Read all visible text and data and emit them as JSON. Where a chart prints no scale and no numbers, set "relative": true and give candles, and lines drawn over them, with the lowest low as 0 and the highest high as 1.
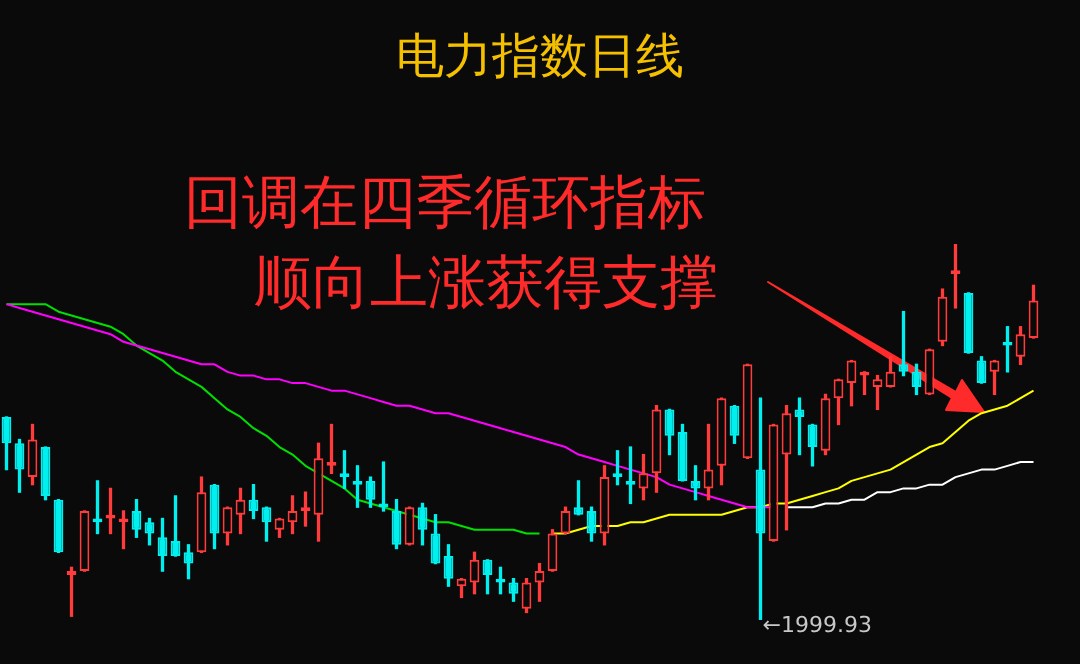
{
  "chart_data": {
    "type": "candlestick",
    "relative": true,
    "title": "电力指数日线",
    "legend": false,
    "annotations": [
      "回调在四季循环指标",
      "顺向上涨获得支撑",
      "←1999.93"
    ],
    "categories": [
      null,
      null,
      null,
      null,
      null,
      null,
      null,
      null,
      null,
      null,
      null,
      null,
      null,
      null,
      null,
      null,
      null,
      null,
      null,
      null,
      null,
      null,
      null,
      null,
      null,
      null,
      null,
      null,
      null,
      null,
      null,
      null,
      null,
      null,
      null,
      null,
      null,
      null,
      null,
      null,
      null,
      null,
      null,
      null,
      null,
      null,
      null,
      null,
      null,
      null,
      null,
      null,
      null,
      null,
      null,
      null,
      null,
      null,
      null,
      null,
      null,
      null,
      null,
      null,
      null,
      null,
      null,
      null,
      null,
      null,
      null,
      null,
      null,
      null,
      null,
      null,
      null,
      null,
      null,
      null
    ],
    "ohlc": [
      [
        0.54,
        0.54,
        0.4,
        0.47
      ],
      [
        0.47,
        0.48,
        0.34,
        0.4
      ],
      [
        0.38,
        0.52,
        0.36,
        0.48
      ],
      [
        0.46,
        0.46,
        0.32,
        0.33
      ],
      [
        0.32,
        0.32,
        0.18,
        0.18
      ],
      [
        0.12,
        0.14,
        0.01,
        0.13
      ],
      [
        0.13,
        0.29,
        0.13,
        0.29
      ],
      [
        0.27,
        0.37,
        0.23,
        0.26
      ],
      [
        0.27,
        0.35,
        0.23,
        0.28
      ],
      [
        0.26,
        0.29,
        0.19,
        0.27
      ],
      [
        0.29,
        0.32,
        0.22,
        0.24
      ],
      [
        0.26,
        0.27,
        0.2,
        0.23
      ],
      [
        0.22,
        0.27,
        0.13,
        0.17
      ],
      [
        0.21,
        0.33,
        0.17,
        0.17
      ],
      [
        0.18,
        0.2,
        0.11,
        0.15
      ],
      [
        0.18,
        0.38,
        0.18,
        0.34
      ],
      [
        0.36,
        0.36,
        0.19,
        0.23
      ],
      [
        0.23,
        0.3,
        0.2,
        0.3
      ],
      [
        0.28,
        0.35,
        0.23,
        0.32
      ],
      [
        0.32,
        0.36,
        0.27,
        0.29
      ],
      [
        0.3,
        0.3,
        0.21,
        0.26
      ],
      [
        0.24,
        0.27,
        0.22,
        0.27
      ],
      [
        0.26,
        0.33,
        0.23,
        0.29
      ],
      [
        0.29,
        0.34,
        0.25,
        0.3
      ],
      [
        0.28,
        0.47,
        0.21,
        0.43
      ],
      [
        0.41,
        0.52,
        0.39,
        0.42
      ],
      [
        0.39,
        0.45,
        0.35,
        0.38
      ],
      [
        0.37,
        0.41,
        0.3,
        0.36
      ],
      [
        0.37,
        0.38,
        0.3,
        0.32
      ],
      [
        0.31,
        0.42,
        0.29,
        0.3
      ],
      [
        0.29,
        0.32,
        0.19,
        0.2
      ],
      [
        0.2,
        0.3,
        0.2,
        0.3
      ],
      [
        0.3,
        0.31,
        0.2,
        0.24
      ],
      [
        0.23,
        0.28,
        0.15,
        0.15
      ],
      [
        0.17,
        0.2,
        0.09,
        0.11
      ],
      [
        0.09,
        0.11,
        0.06,
        0.11
      ],
      [
        0.1,
        0.18,
        0.07,
        0.16
      ],
      [
        0.16,
        0.16,
        0.07,
        0.12
      ],
      [
        0.11,
        0.14,
        0.07,
        0.1
      ],
      [
        0.1,
        0.11,
        0.05,
        0.07
      ],
      [
        0.03,
        0.11,
        0.02,
        0.1
      ],
      [
        0.1,
        0.15,
        0.05,
        0.13
      ],
      [
        0.13,
        0.24,
        0.13,
        0.23
      ],
      [
        0.23,
        0.3,
        0.23,
        0.29
      ],
      [
        0.3,
        0.37,
        0.28,
        0.28
      ],
      [
        0.29,
        0.3,
        0.21,
        0.23
      ],
      [
        0.23,
        0.41,
        0.2,
        0.38
      ],
      [
        0.39,
        0.45,
        0.36,
        0.38
      ],
      [
        0.37,
        0.46,
        0.31,
        0.36
      ],
      [
        0.35,
        0.44,
        0.32,
        0.39
      ],
      [
        0.39,
        0.57,
        0.34,
        0.56
      ],
      [
        0.56,
        0.56,
        0.44,
        0.49
      ],
      [
        0.5,
        0.52,
        0.37,
        0.37
      ],
      [
        0.37,
        0.41,
        0.32,
        0.35
      ],
      [
        0.35,
        0.52,
        0.32,
        0.4
      ],
      [
        0.41,
        0.59,
        0.36,
        0.59
      ],
      [
        0.57,
        0.57,
        0.47,
        0.49
      ],
      [
        0.43,
        0.68,
        0.43,
        0.68
      ],
      [
        0.4,
        0.59,
        0,
        0.23
      ],
      [
        0.21,
        0.52,
        0.21,
        0.52
      ],
      [
        0.44,
        0.57,
        0.24,
        0.55
      ],
      [
        0.56,
        0.59,
        0.44,
        0.54
      ],
      [
        0.52,
        0.52,
        0.41,
        0.46
      ],
      [
        0.45,
        0.6,
        0.44,
        0.59
      ],
      [
        0.59,
        0.64,
        0.52,
        0.64
      ],
      [
        0.63,
        0.69,
        0.57,
        0.69
      ],
      [
        0.65,
        0.66,
        0.6,
        0.66
      ],
      [
        0.62,
        0.65,
        0.56,
        0.64
      ],
      [
        0.62,
        0.7,
        0.62,
        0.66
      ],
      [
        0.68,
        0.82,
        0.65,
        0.66
      ],
      [
        0.66,
        0.68,
        0.6,
        0.62
      ],
      [
        0.6,
        0.72,
        0.6,
        0.72
      ],
      [
        0.74,
        0.88,
        0.73,
        0.86
      ],
      [
        0.92,
        1,
        0.83,
        0.93
      ],
      [
        0.87,
        0.87,
        0.71,
        0.71
      ],
      [
        0.69,
        0.7,
        0.63,
        0.63
      ],
      [
        0.66,
        0.69,
        0.6,
        0.69
      ],
      [
        0.74,
        0.78,
        0.66,
        0.73
      ],
      [
        0.7,
        0.78,
        0.68,
        0.76
      ],
      [
        0.75,
        0.89,
        0.75,
        0.85
      ]
    ],
    "series": [
      {
        "type": "line",
        "color": "#ff00ff",
        "values": [
          0.84,
          0.83,
          0.82,
          0.81,
          0.8,
          0.79,
          0.78,
          0.77,
          0.76,
          0.74,
          0.73,
          0.72,
          0.71,
          0.7,
          0.69,
          0.68,
          0.68,
          0.66,
          0.65,
          0.65,
          0.64,
          0.64,
          0.63,
          0.63,
          0.62,
          0.61,
          0.61,
          0.6,
          0.59,
          0.58,
          0.57,
          0.57,
          0.56,
          0.55,
          0.55,
          0.54,
          0.53,
          0.52,
          0.51,
          0.5,
          0.49,
          0.48,
          0.47,
          0.46,
          0.44,
          0.43,
          0.42,
          0.41,
          0.4,
          0.39,
          0.38,
          0.36,
          0.35,
          0.34,
          0.33,
          0.32,
          0.31,
          0.3,
          0.3,
          0.3,
          null,
          null,
          null,
          null,
          null,
          null,
          null,
          null,
          null,
          null,
          null,
          null,
          null,
          null,
          null,
          null,
          null,
          null,
          null,
          null
        ]
      },
      {
        "type": "line",
        "color": "#00e000",
        "values": [
          0.84,
          0.84,
          0.84,
          0.84,
          0.82,
          0.81,
          0.8,
          0.79,
          0.78,
          0.76,
          0.73,
          0.71,
          0.69,
          0.66,
          0.64,
          0.62,
          0.59,
          0.56,
          0.54,
          0.51,
          0.49,
          0.46,
          0.44,
          0.41,
          0.39,
          0.37,
          0.35,
          0.32,
          0.31,
          0.3,
          0.29,
          0.28,
          0.27,
          0.26,
          0.26,
          0.25,
          0.24,
          0.24,
          0.24,
          0.24,
          0.23,
          0.23,
          null,
          null,
          null,
          null,
          null,
          null,
          null,
          null,
          null,
          null,
          null,
          null,
          null,
          null,
          null,
          null,
          null,
          null,
          null,
          null,
          null,
          null,
          null,
          null,
          null,
          null,
          null,
          null,
          null,
          null,
          null,
          null,
          null,
          null,
          null,
          null,
          null,
          null
        ]
      },
      {
        "type": "line",
        "color": "#ffff00",
        "values": [
          null,
          null,
          null,
          null,
          null,
          null,
          null,
          null,
          null,
          null,
          null,
          null,
          null,
          null,
          null,
          null,
          null,
          null,
          null,
          null,
          null,
          null,
          null,
          null,
          null,
          null,
          null,
          null,
          null,
          null,
          null,
          null,
          null,
          null,
          null,
          null,
          null,
          null,
          null,
          null,
          null,
          null,
          0.23,
          0.23,
          0.24,
          0.25,
          0.25,
          0.25,
          0.26,
          0.26,
          0.27,
          0.28,
          0.28,
          0.28,
          0.28,
          0.28,
          0.29,
          0.3,
          0.3,
          0.31,
          0.31,
          0.32,
          0.33,
          0.34,
          0.35,
          0.37,
          0.38,
          0.39,
          0.4,
          0.42,
          0.44,
          0.46,
          0.47,
          0.5,
          0.53,
          0.55,
          0.56,
          0.57,
          0.59,
          0.61
        ]
      },
      {
        "type": "line",
        "color": "#ffffff",
        "values": [
          null,
          null,
          null,
          null,
          null,
          null,
          null,
          null,
          null,
          null,
          null,
          null,
          null,
          null,
          null,
          null,
          null,
          null,
          null,
          null,
          null,
          null,
          null,
          null,
          null,
          null,
          null,
          null,
          null,
          null,
          null,
          null,
          null,
          null,
          null,
          null,
          null,
          null,
          null,
          null,
          null,
          null,
          null,
          null,
          null,
          null,
          null,
          null,
          null,
          null,
          null,
          null,
          null,
          null,
          null,
          null,
          null,
          null,
          null,
          null,
          0.3,
          0.3,
          0.3,
          0.31,
          0.31,
          0.32,
          0.32,
          0.34,
          0.34,
          0.35,
          0.35,
          0.36,
          0.36,
          0.38,
          0.39,
          0.4,
          0.4,
          0.41,
          0.42,
          0.42
        ]
      }
    ]
  }
}
